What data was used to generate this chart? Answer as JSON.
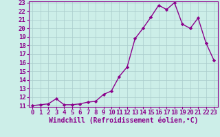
{
  "x": [
    0,
    1,
    2,
    3,
    4,
    5,
    6,
    7,
    8,
    9,
    10,
    11,
    12,
    13,
    14,
    15,
    16,
    17,
    18,
    19,
    20,
    21,
    22,
    23
  ],
  "y": [
    11.0,
    11.1,
    11.2,
    11.8,
    11.1,
    11.1,
    11.2,
    11.4,
    11.5,
    12.3,
    12.7,
    14.4,
    15.5,
    18.8,
    20.0,
    21.3,
    22.7,
    22.2,
    23.0,
    20.5,
    20.0,
    21.2,
    18.3,
    16.3
  ],
  "line_color": "#8B008B",
  "marker": "D",
  "marker_size": 2.2,
  "bg_color": "#cceee8",
  "grid_color": "#aacccc",
  "xlabel": "Windchill (Refroidissement éolien,°C)",
  "ylim": [
    11,
    23
  ],
  "xlim": [
    0,
    23
  ],
  "yticks": [
    11,
    12,
    13,
    14,
    15,
    16,
    17,
    18,
    19,
    20,
    21,
    22,
    23
  ],
  "xticks": [
    0,
    1,
    2,
    3,
    4,
    5,
    6,
    7,
    8,
    9,
    10,
    11,
    12,
    13,
    14,
    15,
    16,
    17,
    18,
    19,
    20,
    21,
    22,
    23
  ],
  "xlabel_fontsize": 7.0,
  "tick_fontsize": 6.5,
  "line_width": 1.0
}
